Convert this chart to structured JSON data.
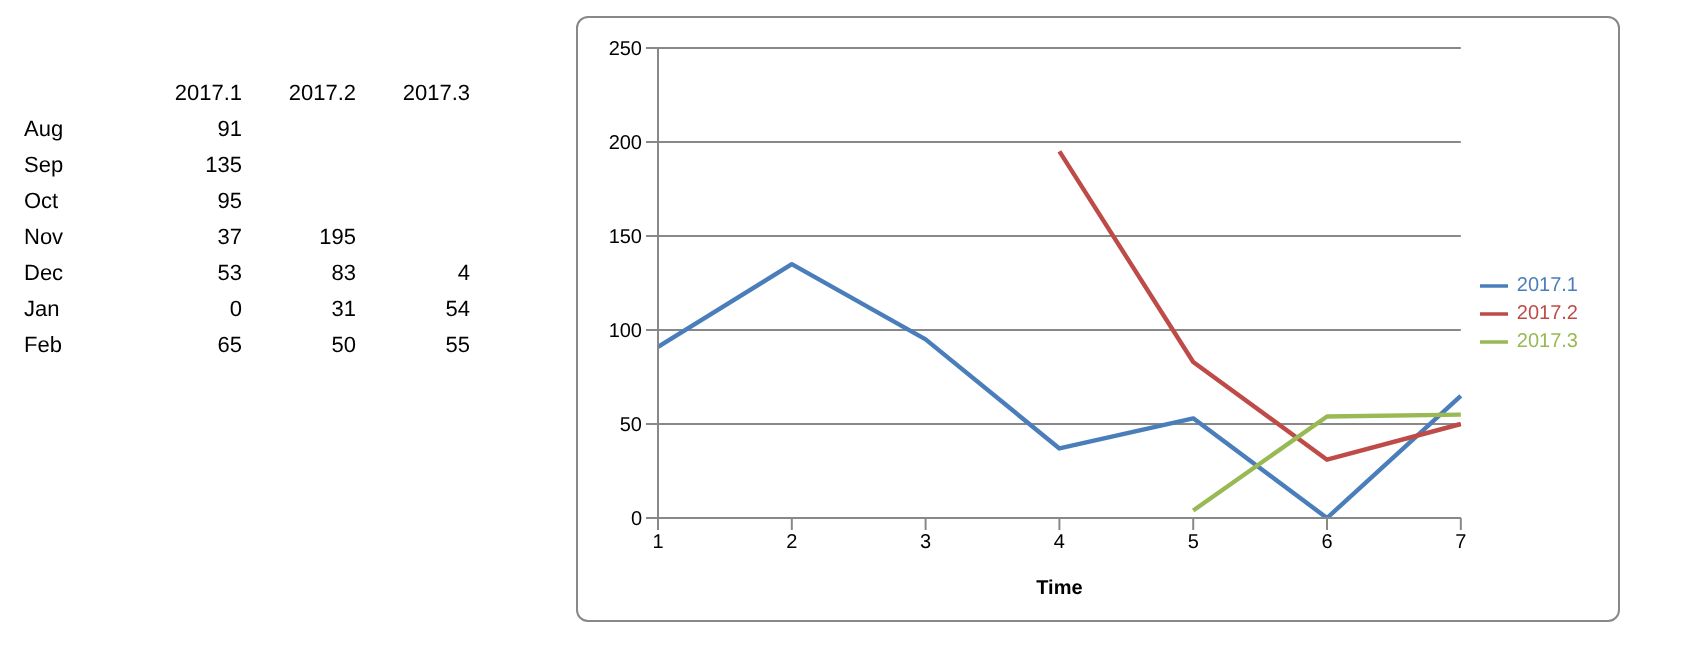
{
  "chart_data": [
    {
      "type": "other",
      "categories": [
        "2017.1",
        "2017.2",
        "2017.3"
      ],
      "y_categories": [
        "Aug",
        "Sep",
        "Oct",
        "Nov",
        "Dec",
        "Jan",
        "Feb"
      ],
      "cell_labels": [
        [
          "91",
          null,
          null
        ],
        [
          "135",
          null,
          null
        ],
        [
          "95",
          null,
          null
        ],
        [
          "37",
          "195",
          null
        ],
        [
          "53",
          "83",
          "4"
        ],
        [
          "0",
          "31",
          "54"
        ],
        [
          "65",
          "50",
          "55"
        ]
      ]
    },
    {
      "type": "line",
      "xlabel": "Time",
      "categories": [
        "1",
        "2",
        "3",
        "4",
        "5",
        "6",
        "7"
      ],
      "series": [
        {
          "name": "2017.1",
          "color": "#4a7ebb",
          "values": [
            91,
            135,
            95,
            37,
            53,
            0,
            65
          ]
        },
        {
          "name": "2017.2",
          "color": "#be4b48",
          "values": [
            null,
            null,
            null,
            195,
            83,
            31,
            50
          ]
        },
        {
          "name": "2017.3",
          "color": "#98b954",
          "values": [
            null,
            null,
            null,
            null,
            4,
            54,
            55
          ]
        }
      ],
      "ylim": [
        0,
        250
      ],
      "yticks": [
        0,
        50,
        100,
        150,
        200,
        250
      ],
      "grid": "y",
      "legend": "right",
      "marker": "none",
      "line_style": "solid"
    }
  ]
}
